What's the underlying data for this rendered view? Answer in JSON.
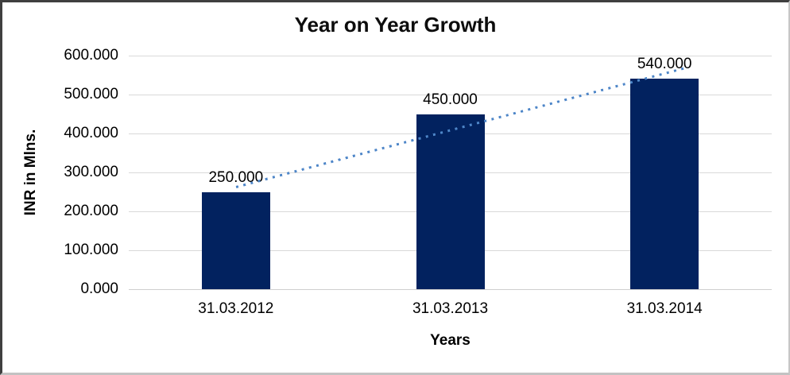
{
  "chart_data": {
    "type": "bar",
    "title": "Year on Year Growth",
    "xlabel": "Years",
    "ylabel": "INR in Mlns.",
    "categories": [
      "31.03.2012",
      "31.03.2013",
      "31.03.2014"
    ],
    "values": [
      250,
      450,
      540
    ],
    "value_labels": [
      "250.000",
      "450.000",
      "540.000"
    ],
    "ylim": [
      0,
      600
    ],
    "yticks": [
      600,
      500,
      400,
      300,
      200,
      100,
      0
    ],
    "ytick_labels": [
      "600.000",
      "500.000",
      "400.000",
      "300.000",
      "200.000",
      "100.000",
      "0.000"
    ],
    "grid": true,
    "legend": "none",
    "bar_color": "#02225F",
    "gridline_color": "#d9d9d9",
    "trendline": {
      "type": "linear",
      "style": "dotted",
      "color": "#4E86C8",
      "start": {
        "cat_frac": 0.5,
        "value": 262
      },
      "end": {
        "cat_frac": 2.59,
        "value": 567
      }
    }
  }
}
